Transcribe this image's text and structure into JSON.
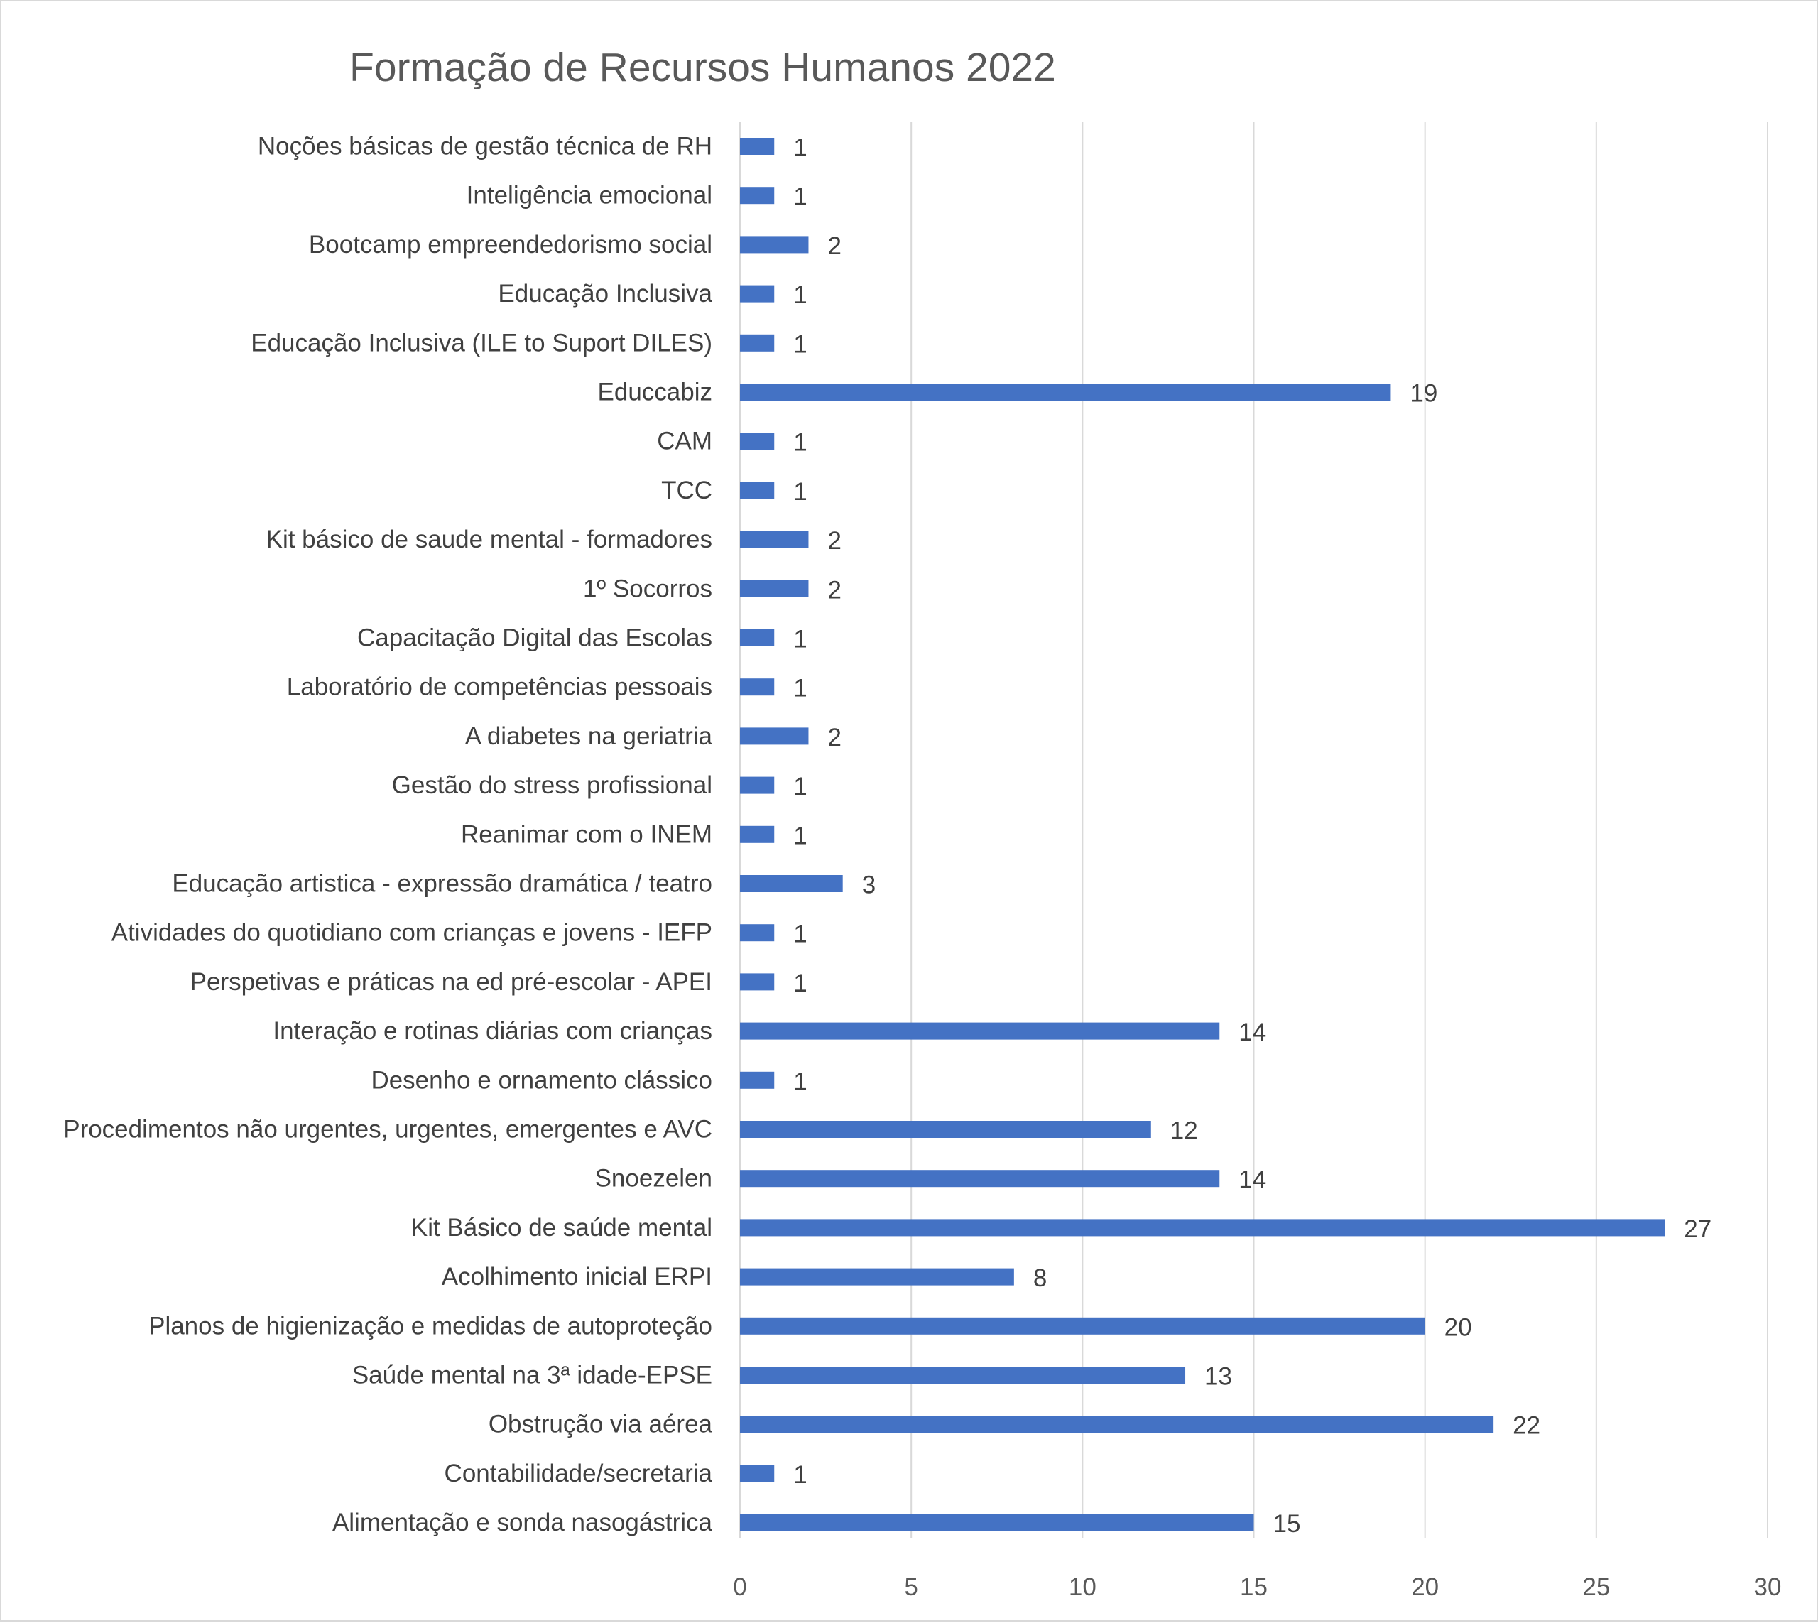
{
  "chart_data": {
    "type": "bar",
    "orientation": "horizontal",
    "title": "Formação de Recursos Humanos 2022",
    "xlabel": "",
    "ylabel": "",
    "xlim": [
      0,
      30
    ],
    "xticks": [
      0,
      5,
      10,
      15,
      20,
      25,
      30
    ],
    "grid": "vertical",
    "legend": "none",
    "bar_color": "#4472C4",
    "categories": [
      "Noções básicas de gestão técnica de RH",
      "Inteligência emocional",
      "Bootcamp empreendedorismo social",
      "Educação Inclusiva",
      "Educação Inclusiva (ILE to Suport DILES)",
      "Educcabiz",
      "CAM",
      "TCC",
      "Kit básico de saude mental - formadores",
      "1º Socorros",
      "Capacitação Digital das Escolas",
      "Laboratório de competências pessoais",
      "A diabetes na geriatria",
      "Gestão do stress profissional",
      "Reanimar com o INEM",
      "Educação artistica - expressão dramática / teatro",
      "Atividades do quotidiano com crianças e jovens - IEFP",
      "Perspetivas e práticas na ed pré-escolar - APEI",
      "Interação e rotinas diárias com crianças",
      "Desenho e ornamento clássico",
      "Procedimentos não urgentes, urgentes, emergentes e AVC",
      "Snoezelen",
      "Kit Básico de saúde mental",
      "Acolhimento inicial ERPI",
      "Planos de higienização e medidas de autoproteção",
      "Saúde mental na 3ª idade-EPSE",
      "Obstrução via aérea",
      "Contabilidade/secretaria",
      "Alimentação e sonda nasogástrica"
    ],
    "values": [
      1,
      1,
      2,
      1,
      1,
      19,
      1,
      1,
      2,
      2,
      1,
      1,
      2,
      1,
      1,
      3,
      1,
      1,
      14,
      1,
      12,
      14,
      27,
      8,
      20,
      13,
      22,
      1,
      15
    ]
  }
}
